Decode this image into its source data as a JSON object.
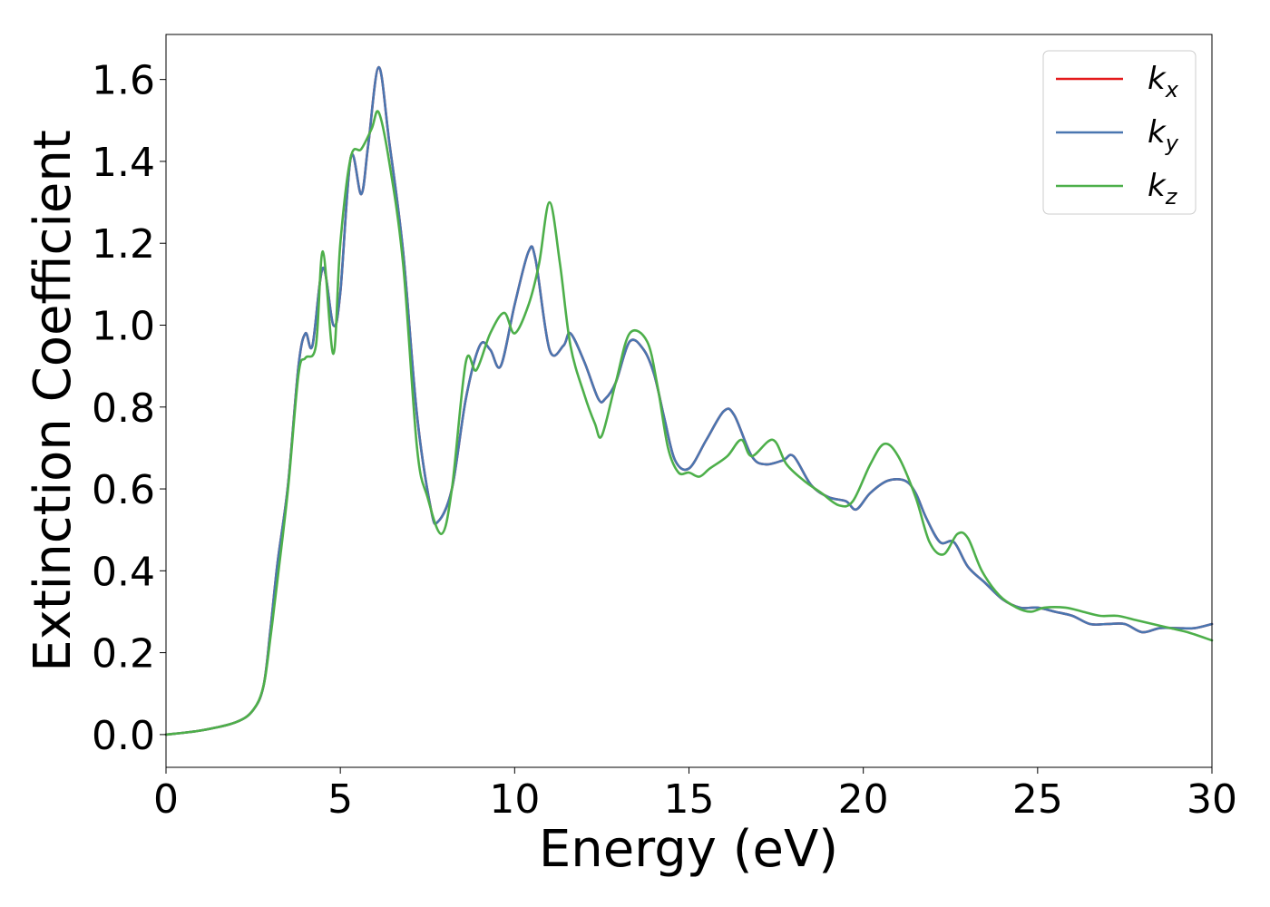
{
  "chart_data": {
    "type": "line",
    "title": "",
    "xlabel": "Energy (eV)",
    "ylabel": "Extinction Coefficient",
    "xlim": [
      0,
      30
    ],
    "ylim": [
      -0.08,
      1.71
    ],
    "xticks": [
      0,
      5,
      10,
      15,
      20,
      25,
      30
    ],
    "xtick_labels": [
      "0",
      "5",
      "10",
      "15",
      "20",
      "25",
      "30"
    ],
    "yticks": [
      0.0,
      0.2,
      0.4,
      0.6,
      0.8,
      1.0,
      1.2,
      1.4,
      1.6
    ],
    "ytick_labels": [
      "0.0",
      "0.2",
      "0.4",
      "0.6",
      "0.8",
      "1.0",
      "1.2",
      "1.4",
      "1.6"
    ],
    "grid": false,
    "legend_position": "top-right",
    "series": [
      {
        "name": "k",
        "subscript": "x",
        "color": "#e41a1c",
        "x": [
          0,
          1,
          2,
          2.5,
          2.8,
          3.0,
          3.2,
          3.5,
          3.8,
          4.0,
          4.2,
          4.5,
          4.8,
          5.0,
          5.3,
          5.6,
          5.8,
          6.1,
          6.4,
          6.8,
          7.2,
          7.6,
          7.8,
          8.2,
          8.6,
          9.0,
          9.3,
          9.6,
          10.0,
          10.4,
          10.6,
          11.0,
          11.4,
          11.6,
          12.0,
          12.4,
          12.6,
          12.9,
          13.3,
          13.7,
          14.0,
          14.3,
          14.6,
          15.0,
          15.5,
          16.0,
          16.3,
          16.8,
          17.2,
          17.7,
          18.0,
          18.5,
          19.0,
          19.5,
          19.8,
          20.2,
          20.7,
          21.2,
          21.5,
          21.8,
          22.2,
          22.6,
          23.0,
          23.5,
          24.0,
          24.5,
          25.0,
          25.5,
          26.0,
          26.5,
          27.0,
          27.5,
          28.0,
          28.5,
          29.0,
          29.5,
          30.0
        ],
        "values": [
          0.0,
          0.01,
          0.03,
          0.06,
          0.12,
          0.26,
          0.42,
          0.61,
          0.9,
          0.98,
          0.95,
          1.14,
          1.0,
          1.08,
          1.41,
          1.32,
          1.44,
          1.63,
          1.45,
          1.18,
          0.78,
          0.55,
          0.52,
          0.6,
          0.82,
          0.95,
          0.94,
          0.9,
          1.05,
          1.18,
          1.16,
          0.94,
          0.95,
          0.98,
          0.91,
          0.82,
          0.82,
          0.86,
          0.96,
          0.94,
          0.88,
          0.77,
          0.67,
          0.65,
          0.72,
          0.79,
          0.78,
          0.68,
          0.66,
          0.67,
          0.68,
          0.61,
          0.58,
          0.57,
          0.55,
          0.59,
          0.62,
          0.62,
          0.59,
          0.53,
          0.47,
          0.47,
          0.41,
          0.37,
          0.33,
          0.31,
          0.31,
          0.3,
          0.29,
          0.27,
          0.27,
          0.27,
          0.25,
          0.26,
          0.26,
          0.26,
          0.27
        ]
      },
      {
        "name": "k",
        "subscript": "y",
        "color": "#4a76b0",
        "x": [
          0,
          1,
          2,
          2.5,
          2.8,
          3.0,
          3.2,
          3.5,
          3.8,
          4.0,
          4.2,
          4.5,
          4.8,
          5.0,
          5.3,
          5.6,
          5.8,
          6.1,
          6.4,
          6.8,
          7.2,
          7.6,
          7.8,
          8.2,
          8.6,
          9.0,
          9.3,
          9.6,
          10.0,
          10.4,
          10.6,
          11.0,
          11.4,
          11.6,
          12.0,
          12.4,
          12.6,
          12.9,
          13.3,
          13.7,
          14.0,
          14.3,
          14.6,
          15.0,
          15.5,
          16.0,
          16.3,
          16.8,
          17.2,
          17.7,
          18.0,
          18.5,
          19.0,
          19.5,
          19.8,
          20.2,
          20.7,
          21.2,
          21.5,
          21.8,
          22.2,
          22.6,
          23.0,
          23.5,
          24.0,
          24.5,
          25.0,
          25.5,
          26.0,
          26.5,
          27.0,
          27.5,
          28.0,
          28.5,
          29.0,
          29.5,
          30.0
        ],
        "values": [
          0.0,
          0.01,
          0.03,
          0.06,
          0.12,
          0.26,
          0.42,
          0.61,
          0.9,
          0.98,
          0.95,
          1.14,
          1.0,
          1.08,
          1.41,
          1.32,
          1.44,
          1.63,
          1.45,
          1.18,
          0.78,
          0.55,
          0.52,
          0.6,
          0.82,
          0.95,
          0.94,
          0.9,
          1.05,
          1.18,
          1.16,
          0.94,
          0.95,
          0.98,
          0.91,
          0.82,
          0.82,
          0.86,
          0.96,
          0.94,
          0.88,
          0.77,
          0.67,
          0.65,
          0.72,
          0.79,
          0.78,
          0.68,
          0.66,
          0.67,
          0.68,
          0.61,
          0.58,
          0.57,
          0.55,
          0.59,
          0.62,
          0.62,
          0.59,
          0.53,
          0.47,
          0.47,
          0.41,
          0.37,
          0.33,
          0.31,
          0.31,
          0.3,
          0.29,
          0.27,
          0.27,
          0.27,
          0.25,
          0.26,
          0.26,
          0.26,
          0.27
        ]
      },
      {
        "name": "k",
        "subscript": "z",
        "color": "#4daf4a",
        "x": [
          0,
          1,
          2,
          2.5,
          2.8,
          3.0,
          3.2,
          3.5,
          3.8,
          4.0,
          4.3,
          4.5,
          4.8,
          5.0,
          5.3,
          5.6,
          5.9,
          6.1,
          6.4,
          6.8,
          7.2,
          7.5,
          7.9,
          8.2,
          8.6,
          8.9,
          9.3,
          9.7,
          10.0,
          10.4,
          10.7,
          11.0,
          11.3,
          11.6,
          12.0,
          12.3,
          12.5,
          12.9,
          13.3,
          13.8,
          14.1,
          14.4,
          14.7,
          15.0,
          15.3,
          15.6,
          16.1,
          16.5,
          16.8,
          17.4,
          17.8,
          18.3,
          18.8,
          19.3,
          19.7,
          20.2,
          20.6,
          21.0,
          21.5,
          21.9,
          22.3,
          22.7,
          23.0,
          23.4,
          23.9,
          24.4,
          24.8,
          25.2,
          25.8,
          26.3,
          26.8,
          27.3,
          27.8,
          28.3,
          28.8,
          29.3,
          30.0
        ],
        "values": [
          0.0,
          0.01,
          0.03,
          0.06,
          0.12,
          0.24,
          0.38,
          0.6,
          0.88,
          0.92,
          0.95,
          1.18,
          0.93,
          1.2,
          1.41,
          1.43,
          1.48,
          1.52,
          1.4,
          1.15,
          0.7,
          0.58,
          0.49,
          0.6,
          0.91,
          0.89,
          0.98,
          1.03,
          0.98,
          1.05,
          1.15,
          1.3,
          1.15,
          0.95,
          0.83,
          0.76,
          0.73,
          0.86,
          0.98,
          0.96,
          0.85,
          0.7,
          0.64,
          0.64,
          0.63,
          0.65,
          0.68,
          0.72,
          0.68,
          0.72,
          0.66,
          0.62,
          0.59,
          0.56,
          0.57,
          0.66,
          0.71,
          0.68,
          0.58,
          0.47,
          0.44,
          0.49,
          0.48,
          0.4,
          0.34,
          0.31,
          0.3,
          0.31,
          0.31,
          0.3,
          0.29,
          0.29,
          0.28,
          0.27,
          0.26,
          0.25,
          0.23
        ]
      }
    ]
  }
}
